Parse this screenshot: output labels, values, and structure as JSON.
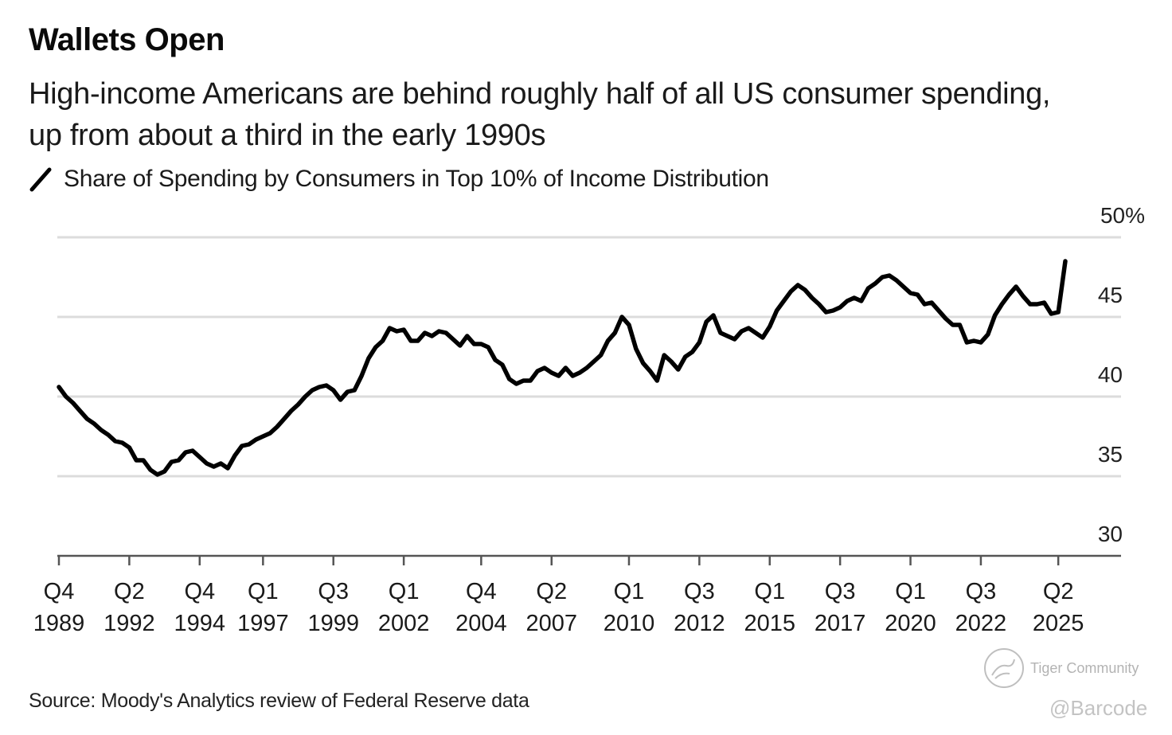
{
  "chart_data": {
    "type": "line",
    "title": "Wallets Open",
    "subtitle": "High-income Americans are behind roughly half of all US consumer spending, up from about a third in the early 1990s",
    "legend": [
      {
        "name": "Share of Spending by Consumers in Top 10% of Income Distribution",
        "color": "#000000"
      }
    ],
    "legend_placement": "top-left",
    "xlabel": "",
    "ylabel": "",
    "y_unit": "%",
    "ylim": [
      30,
      50
    ],
    "y_ticks": [
      30,
      35,
      40,
      45,
      50
    ],
    "y_tick_labels": [
      "30",
      "35",
      "40",
      "45",
      "50%"
    ],
    "grid": true,
    "x_start": "Q4 1989",
    "x_end": "Q2 2025",
    "x_ticks": [
      {
        "q": "Q4",
        "year": "1989",
        "index": 0
      },
      {
        "q": "Q2",
        "year": "1992",
        "index": 10
      },
      {
        "q": "Q4",
        "year": "1994",
        "index": 20
      },
      {
        "q": "Q1",
        "year": "1997",
        "index": 29
      },
      {
        "q": "Q3",
        "year": "1999",
        "index": 39
      },
      {
        "q": "Q1",
        "year": "2002",
        "index": 49
      },
      {
        "q": "Q4",
        "year": "2004",
        "index": 60
      },
      {
        "q": "Q2",
        "year": "2007",
        "index": 70
      },
      {
        "q": "Q1",
        "year": "2010",
        "index": 81
      },
      {
        "q": "Q3",
        "year": "2012",
        "index": 91
      },
      {
        "q": "Q1",
        "year": "2015",
        "index": 101
      },
      {
        "q": "Q3",
        "year": "2017",
        "index": 111
      },
      {
        "q": "Q1",
        "year": "2020",
        "index": 121
      },
      {
        "q": "Q3",
        "year": "2022",
        "index": 131
      },
      {
        "q": "Q2",
        "year": "2025",
        "index": 142
      }
    ],
    "series": [
      {
        "name": "Share of Spending by Consumers in Top 10% of Income Distribution",
        "color": "#000000",
        "values": [
          40.6,
          40.0,
          39.6,
          39.1,
          38.6,
          38.3,
          37.9,
          37.6,
          37.2,
          37.1,
          36.8,
          36.0,
          36.0,
          35.4,
          35.1,
          35.3,
          35.9,
          36.0,
          36.5,
          36.6,
          36.2,
          35.8,
          35.6,
          35.8,
          35.5,
          36.3,
          36.9,
          37.0,
          37.3,
          37.5,
          37.7,
          38.1,
          38.6,
          39.1,
          39.5,
          40.0,
          40.4,
          40.6,
          40.7,
          40.4,
          39.8,
          40.3,
          40.4,
          41.3,
          42.4,
          43.1,
          43.5,
          44.3,
          44.1,
          44.2,
          43.5,
          43.5,
          44.0,
          43.8,
          44.1,
          44.0,
          43.6,
          43.2,
          43.8,
          43.3,
          43.3,
          43.1,
          42.3,
          42.0,
          41.1,
          40.8,
          41.0,
          41.0,
          41.6,
          41.8,
          41.5,
          41.3,
          41.8,
          41.3,
          41.5,
          41.8,
          42.2,
          42.6,
          43.5,
          44.0,
          45.0,
          44.5,
          43.0,
          42.1,
          41.6,
          41.0,
          42.6,
          42.2,
          41.7,
          42.5,
          42.8,
          43.4,
          44.7,
          45.1,
          44.0,
          43.8,
          43.6,
          44.1,
          44.3,
          44.0,
          43.7,
          44.4,
          45.4,
          46.0,
          46.6,
          47.0,
          46.7,
          46.2,
          45.8,
          45.3,
          45.4,
          45.6,
          46.0,
          46.2,
          46.0,
          46.8,
          47.1,
          47.5,
          47.6,
          47.3,
          46.9,
          46.5,
          46.4,
          45.8,
          45.9,
          45.4,
          44.9,
          44.5,
          44.5,
          43.4,
          43.5,
          43.4,
          43.9,
          45.1,
          45.8,
          46.4,
          46.9,
          46.3,
          45.8,
          45.8,
          45.9,
          45.2,
          45.3,
          48.5
        ]
      }
    ]
  },
  "source": "Source: Moody's Analytics review of Federal Reserve data",
  "watermark": {
    "brand": "Tiger Community",
    "handle": "@Barcode"
  }
}
